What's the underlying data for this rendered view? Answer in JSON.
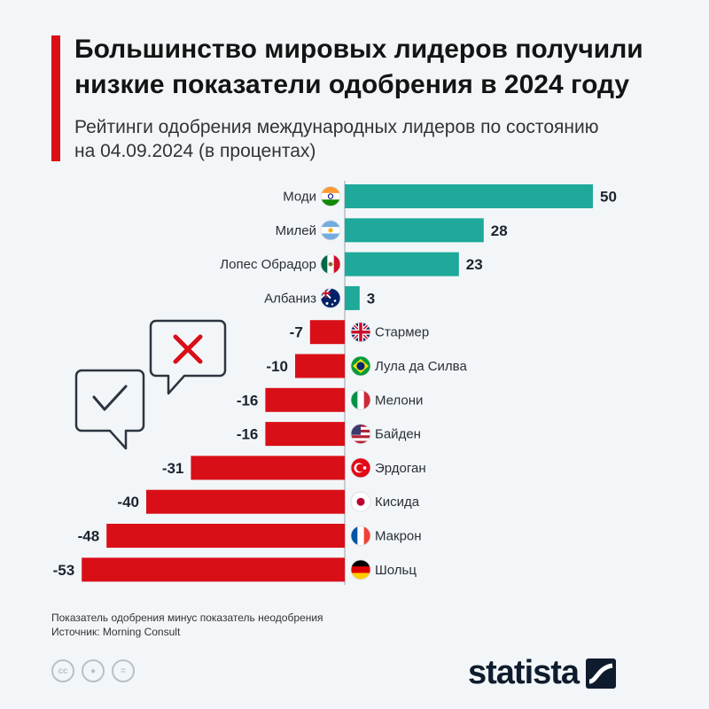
{
  "header": {
    "title": "Большинство мировых лидеров получили низкие показатели одобрения в 2024 году",
    "subtitle": "Рейтинги одобрения международных лидеров по состоянию на 04.09.2024 (в процентах)"
  },
  "chart_data": {
    "type": "bar",
    "orientation": "horizontal",
    "title": "Большинство мировых лидеров получили низкие показатели одобрения в 2024 году",
    "subtitle": "Рейтинги одобрения международных лидеров по состоянию на 04.09.2024 (в процентах)",
    "xlabel": "",
    "ylabel": "",
    "xlim": [
      -53,
      50
    ],
    "categories": [
      "Моди",
      "Милей",
      "Лопес Обрадор",
      "Албаниз",
      "Стармер",
      "Лула да Силва",
      "Мелони",
      "Байден",
      "Эрдоган",
      "Кисида",
      "Макрон",
      "Шольц"
    ],
    "values": [
      50,
      28,
      23,
      3,
      -7,
      -10,
      -16,
      -16,
      -31,
      -40,
      -48,
      -53
    ],
    "flags": [
      "india",
      "argentina",
      "mexico",
      "australia",
      "uk",
      "brazil",
      "italy",
      "usa",
      "turkey",
      "japan",
      "france",
      "germany"
    ],
    "positive_color": "#1ea99a",
    "negative_color": "#d90f18"
  },
  "footer": {
    "note": "Показатель одобрения минус показатель неодобрения",
    "source": "Источник: Morning Consult",
    "brand": "statista"
  },
  "colors": {
    "accent": "#d90f18",
    "positive": "#1ea99a",
    "brand": "#0f1c2e"
  }
}
